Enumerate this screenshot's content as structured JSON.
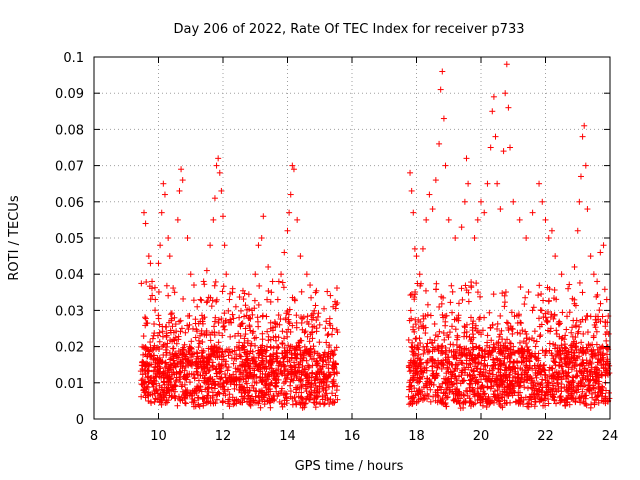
{
  "chart_data": {
    "type": "scatter",
    "title": "Day 206 of 2022, Rate Of TEC Index for receiver p733",
    "xlabel": "GPS time / hours",
    "ylabel": "ROTI / TECUs",
    "xlim": [
      8,
      24
    ],
    "ylim": [
      0,
      0.1
    ],
    "grid": true,
    "marker": "+",
    "color": "#ff0000",
    "xticks": [
      "8",
      "10",
      "12",
      "14",
      "16",
      "18",
      "20",
      "22",
      "24"
    ],
    "yticks": [
      "0",
      "0.01",
      "0.02",
      "0.03",
      "0.04",
      "0.05",
      "0.06",
      "0.07",
      "0.08",
      "0.09",
      "0.1"
    ],
    "series": [
      {
        "points": [
          [
            9.55,
            0.057
          ],
          [
            9.6,
            0.054
          ],
          [
            9.7,
            0.045
          ],
          [
            9.75,
            0.043
          ],
          [
            9.8,
            0.038
          ],
          [
            9.9,
            0.033
          ],
          [
            10.0,
            0.043
          ],
          [
            10.05,
            0.048
          ],
          [
            10.1,
            0.057
          ],
          [
            10.15,
            0.065
          ],
          [
            10.2,
            0.062
          ],
          [
            10.3,
            0.05
          ],
          [
            10.35,
            0.045
          ],
          [
            10.5,
            0.035
          ],
          [
            10.6,
            0.055
          ],
          [
            10.65,
            0.063
          ],
          [
            10.7,
            0.069
          ],
          [
            10.75,
            0.066
          ],
          [
            10.9,
            0.05
          ],
          [
            11.0,
            0.04
          ],
          [
            11.1,
            0.037
          ],
          [
            11.2,
            0.031
          ],
          [
            11.3,
            0.033
          ],
          [
            11.4,
            0.038
          ],
          [
            11.5,
            0.041
          ],
          [
            11.6,
            0.048
          ],
          [
            11.7,
            0.055
          ],
          [
            11.75,
            0.061
          ],
          [
            11.8,
            0.07
          ],
          [
            11.85,
            0.072
          ],
          [
            11.9,
            0.068
          ],
          [
            11.95,
            0.063
          ],
          [
            12.0,
            0.056
          ],
          [
            12.05,
            0.048
          ],
          [
            12.1,
            0.04
          ],
          [
            12.2,
            0.033
          ],
          [
            12.3,
            0.036
          ],
          [
            12.4,
            0.031
          ],
          [
            12.5,
            0.028
          ],
          [
            12.7,
            0.025
          ],
          [
            12.9,
            0.03
          ],
          [
            13.0,
            0.04
          ],
          [
            13.1,
            0.048
          ],
          [
            13.2,
            0.05
          ],
          [
            13.25,
            0.056
          ],
          [
            13.4,
            0.042
          ],
          [
            13.5,
            0.035
          ],
          [
            13.7,
            0.033
          ],
          [
            13.8,
            0.04
          ],
          [
            13.9,
            0.046
          ],
          [
            14.0,
            0.052
          ],
          [
            14.05,
            0.057
          ],
          [
            14.1,
            0.062
          ],
          [
            14.15,
            0.07
          ],
          [
            14.2,
            0.069
          ],
          [
            14.3,
            0.055
          ],
          [
            14.4,
            0.045
          ],
          [
            14.6,
            0.04
          ],
          [
            14.7,
            0.037
          ],
          [
            14.8,
            0.028
          ],
          [
            15.0,
            0.026
          ],
          [
            15.2,
            0.027
          ],
          [
            15.4,
            0.025
          ],
          [
            15.55,
            0.024
          ],
          [
            17.8,
            0.068
          ],
          [
            17.85,
            0.063
          ],
          [
            17.9,
            0.057
          ],
          [
            17.95,
            0.047
          ],
          [
            18.0,
            0.045
          ],
          [
            18.1,
            0.04
          ],
          [
            18.2,
            0.047
          ],
          [
            18.3,
            0.055
          ],
          [
            18.4,
            0.062
          ],
          [
            18.5,
            0.058
          ],
          [
            18.6,
            0.066
          ],
          [
            18.7,
            0.076
          ],
          [
            18.75,
            0.091
          ],
          [
            18.8,
            0.096
          ],
          [
            18.85,
            0.083
          ],
          [
            18.9,
            0.07
          ],
          [
            19.0,
            0.055
          ],
          [
            19.2,
            0.05
          ],
          [
            19.4,
            0.053
          ],
          [
            19.5,
            0.06
          ],
          [
            19.55,
            0.072
          ],
          [
            19.6,
            0.065
          ],
          [
            19.8,
            0.05
          ],
          [
            19.9,
            0.055
          ],
          [
            20.0,
            0.06
          ],
          [
            20.1,
            0.057
          ],
          [
            20.2,
            0.065
          ],
          [
            20.3,
            0.075
          ],
          [
            20.35,
            0.085
          ],
          [
            20.4,
            0.089
          ],
          [
            20.45,
            0.078
          ],
          [
            20.5,
            0.065
          ],
          [
            20.6,
            0.058
          ],
          [
            20.7,
            0.074
          ],
          [
            20.75,
            0.09
          ],
          [
            20.8,
            0.098
          ],
          [
            20.85,
            0.086
          ],
          [
            20.9,
            0.075
          ],
          [
            21.0,
            0.06
          ],
          [
            21.2,
            0.055
          ],
          [
            21.4,
            0.05
          ],
          [
            21.6,
            0.057
          ],
          [
            21.8,
            0.065
          ],
          [
            21.9,
            0.06
          ],
          [
            22.0,
            0.055
          ],
          [
            22.1,
            0.05
          ],
          [
            22.2,
            0.052
          ],
          [
            22.3,
            0.045
          ],
          [
            22.5,
            0.04
          ],
          [
            22.7,
            0.036
          ],
          [
            22.9,
            0.042
          ],
          [
            23.0,
            0.052
          ],
          [
            23.05,
            0.06
          ],
          [
            23.1,
            0.067
          ],
          [
            23.15,
            0.078
          ],
          [
            23.2,
            0.081
          ],
          [
            23.25,
            0.07
          ],
          [
            23.3,
            0.058
          ],
          [
            23.4,
            0.045
          ],
          [
            23.5,
            0.04
          ],
          [
            23.6,
            0.038
          ],
          [
            23.7,
            0.046
          ],
          [
            23.8,
            0.048
          ],
          [
            23.9,
            0.033
          ]
        ]
      }
    ]
  }
}
